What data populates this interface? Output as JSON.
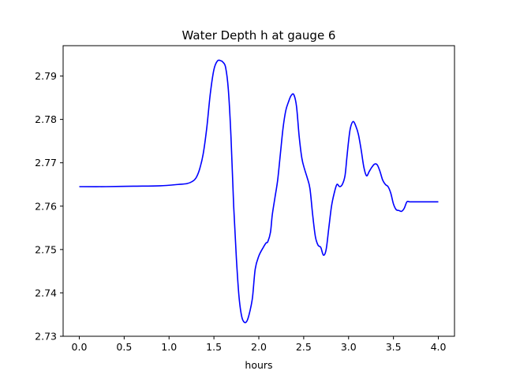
{
  "chart_data": {
    "type": "line",
    "title": "Water Depth h at gauge 6",
    "xlabel": "hours",
    "ylabel": "",
    "xlim": [
      -0.18,
      4.18
    ],
    "ylim": [
      2.73,
      2.797
    ],
    "xticks": [
      0.0,
      0.5,
      1.0,
      1.5,
      2.0,
      2.5,
      3.0,
      3.5,
      4.0
    ],
    "xtick_labels": [
      "0.0",
      "0.5",
      "1.0",
      "1.5",
      "2.0",
      "2.5",
      "3.0",
      "3.5",
      "4.0"
    ],
    "yticks": [
      2.73,
      2.74,
      2.75,
      2.76,
      2.77,
      2.78,
      2.79
    ],
    "ytick_labels": [
      "2.73",
      "2.74",
      "2.75",
      "2.76",
      "2.77",
      "2.78",
      "2.79"
    ],
    "grid": false,
    "series": [
      {
        "color": "#0000ff",
        "x": [
          0.0,
          0.3,
          0.6,
          0.9,
          1.1,
          1.2,
          1.26,
          1.3,
          1.34,
          1.38,
          1.42,
          1.46,
          1.5,
          1.54,
          1.58,
          1.6,
          1.63,
          1.66,
          1.69,
          1.72,
          1.75,
          1.78,
          1.81,
          1.84,
          1.87,
          1.9,
          1.93,
          1.96,
          2.0,
          2.05,
          2.08,
          2.1,
          2.13,
          2.15,
          2.18,
          2.21,
          2.24,
          2.27,
          2.3,
          2.33,
          2.36,
          2.39,
          2.42,
          2.45,
          2.48,
          2.51,
          2.54,
          2.57,
          2.6,
          2.63,
          2.66,
          2.69,
          2.72,
          2.75,
          2.78,
          2.81,
          2.84,
          2.87,
          2.9,
          2.93,
          2.96,
          2.98,
          3.0,
          3.02,
          3.05,
          3.08,
          3.11,
          3.14,
          3.17,
          3.2,
          3.23,
          3.26,
          3.29,
          3.32,
          3.35,
          3.38,
          3.41,
          3.44,
          3.47,
          3.5,
          3.53,
          3.56,
          3.59,
          3.62,
          3.65,
          3.68,
          3.71,
          3.74,
          3.77,
          3.8,
          3.83,
          3.86,
          3.89,
          3.92,
          3.95,
          3.98,
          4.0
        ],
        "y": [
          2.7645,
          2.7645,
          2.7646,
          2.7647,
          2.765,
          2.7652,
          2.7657,
          2.7665,
          2.7685,
          2.772,
          2.778,
          2.786,
          2.7915,
          2.7935,
          2.7935,
          2.7932,
          2.792,
          2.787,
          2.776,
          2.76,
          2.748,
          2.739,
          2.7345,
          2.7332,
          2.7336,
          2.7357,
          2.739,
          2.7455,
          2.7485,
          2.7505,
          2.7515,
          2.7518,
          2.754,
          2.758,
          2.762,
          2.766,
          2.772,
          2.778,
          2.782,
          2.784,
          2.7855,
          2.7857,
          2.783,
          2.776,
          2.771,
          2.7685,
          2.7665,
          2.764,
          2.758,
          2.753,
          2.751,
          2.7505,
          2.7487,
          2.75,
          2.755,
          2.76,
          2.763,
          2.765,
          2.7645,
          2.765,
          2.767,
          2.771,
          2.775,
          2.778,
          2.7795,
          2.7785,
          2.7765,
          2.773,
          2.769,
          2.767,
          2.768,
          2.769,
          2.7697,
          2.7695,
          2.768,
          2.766,
          2.765,
          2.7645,
          2.763,
          2.7605,
          2.7592,
          2.759,
          2.7588,
          2.7595,
          2.761,
          2.761,
          2.761,
          2.761,
          2.761,
          2.761,
          2.761,
          2.761,
          2.761,
          2.761,
          2.761,
          2.761,
          2.761
        ]
      }
    ]
  }
}
